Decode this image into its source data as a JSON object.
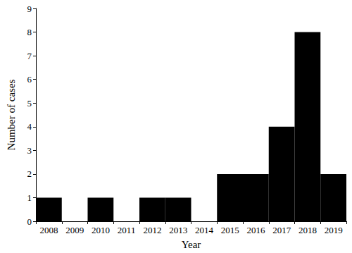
{
  "chart_data": {
    "type": "bar",
    "categories": [
      "2008",
      "2009",
      "2010",
      "2011",
      "2012",
      "2013",
      "2014",
      "2015",
      "2016",
      "2017",
      "2018",
      "2019"
    ],
    "values": [
      1,
      0,
      1,
      0,
      1,
      1,
      0,
      2,
      2,
      4,
      8,
      2
    ],
    "color": "#000000",
    "xlabel": "Year",
    "ylabel": "Number of cases",
    "ylim": [
      0,
      9
    ],
    "yticks": [
      0,
      1,
      2,
      3,
      4,
      5,
      6,
      7,
      8,
      9
    ],
    "grid": false
  }
}
